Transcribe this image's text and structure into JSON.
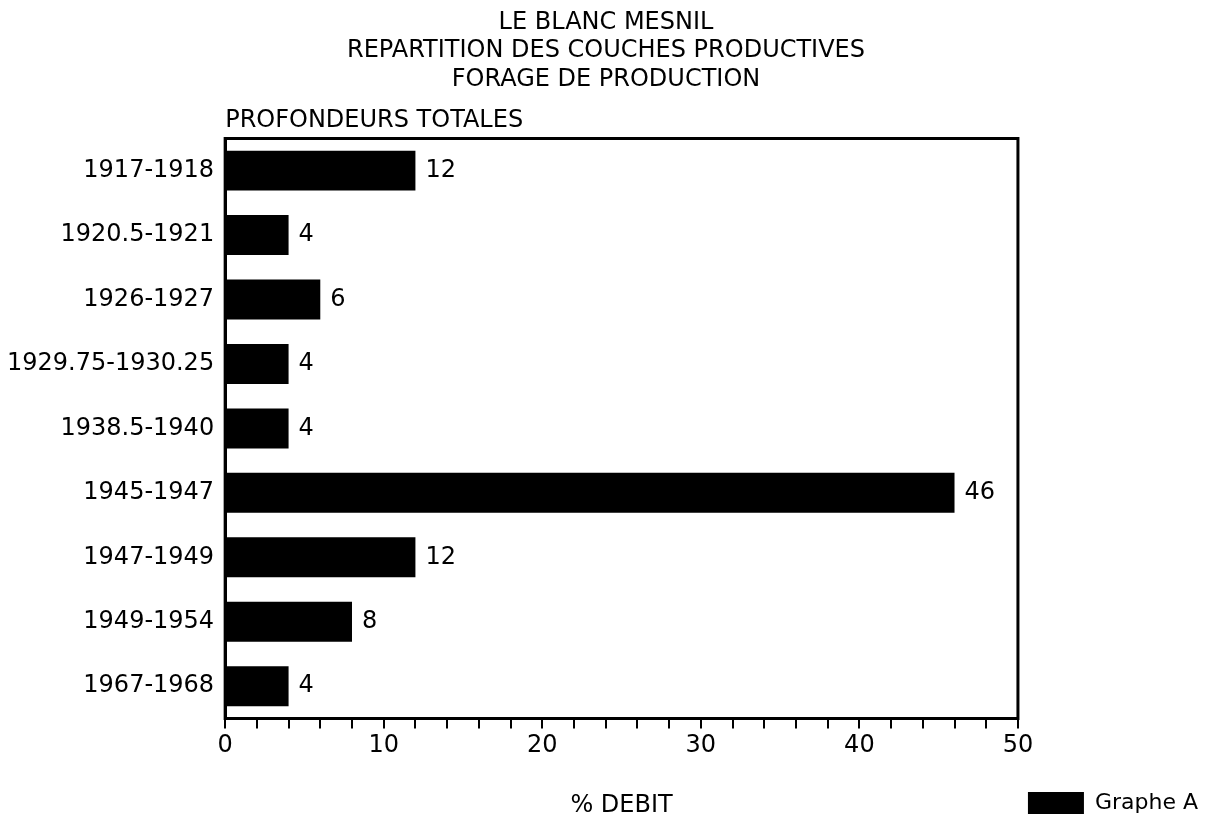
{
  "chart_data": {
    "type": "bar",
    "orientation": "horizontal",
    "title": "LE BLANC MESNIL\nREPARTITION DES COUCHES PRODUCTIVES\nFORAGE DE PRODUCTION",
    "ylabel": "PROFONDEURS TOTALES",
    "xlabel": "% DEBIT",
    "categories": [
      "1917-1918",
      "1920.5-1921",
      "1926-1927",
      "1929.75-1930.25",
      "1938.5-1940",
      "1945-1947",
      "1947-1949",
      "1949-1954",
      "1967-1968"
    ],
    "series": [
      {
        "name": "Graphe A",
        "color": "#000000",
        "values": [
          12,
          4,
          6,
          4,
          4,
          46,
          12,
          8,
          4
        ]
      }
    ],
    "xlim": [
      0,
      50
    ],
    "xticks": [
      0,
      {
        "value": 2,
        "label": null
      },
      {
        "value": 4,
        "label": null
      },
      {
        "value": 6,
        "label": null
      },
      {
        "value": 8,
        "label": null
      },
      10,
      {
        "value": 12,
        "label": null
      },
      {
        "value": 14,
        "label": null
      },
      {
        "value": 16,
        "label": null
      },
      {
        "value": 18,
        "label": null
      },
      20,
      {
        "value": 22,
        "label": null
      },
      {
        "value": 24,
        "label": null
      },
      {
        "value": 26,
        "label": null
      },
      {
        "value": 28,
        "label": null
      },
      30,
      {
        "value": 32,
        "label": null
      },
      {
        "value": 34,
        "label": null
      },
      {
        "value": 36,
        "label": null
      },
      {
        "value": 38,
        "label": null
      },
      40,
      {
        "value": 42,
        "label": null
      },
      {
        "value": 44,
        "label": null
      },
      {
        "value": 46,
        "label": null
      },
      {
        "value": 48,
        "label": null
      },
      50
    ],
    "data_labels": true,
    "legend": "bottom right",
    "grid": false
  }
}
